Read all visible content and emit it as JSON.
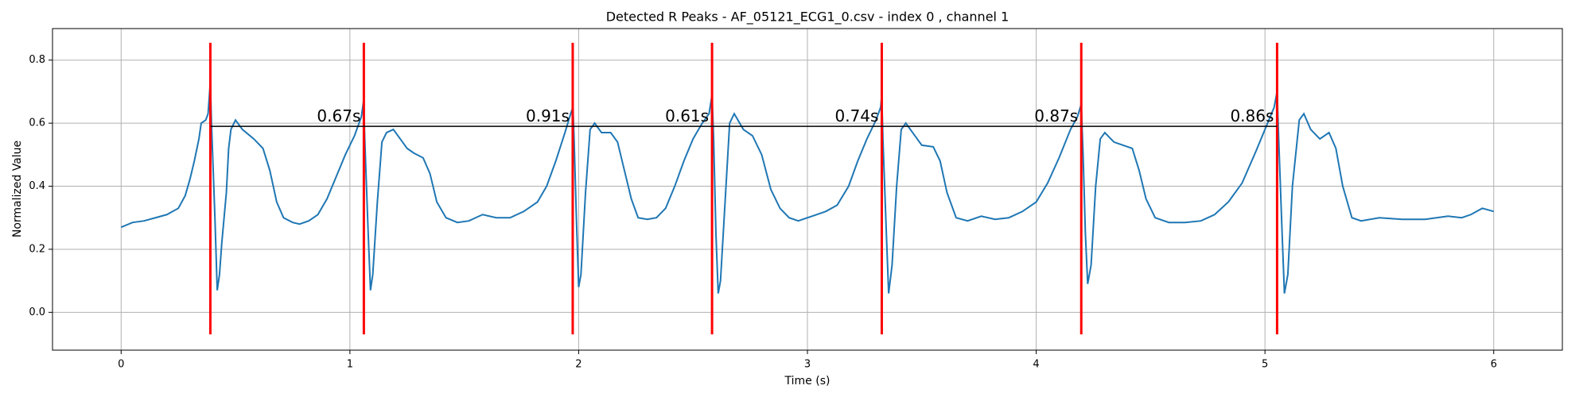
{
  "chart_data": {
    "type": "line",
    "title": "Detected R Peaks - AF_05121_ECG1_0.csv - index 0 , channel 1",
    "x_label": "Time (s)",
    "y_label": "Normalized Value",
    "xlim": [
      -0.3,
      6.3
    ],
    "ylim": [
      -0.12,
      0.9
    ],
    "xticks": [
      0,
      1,
      2,
      3,
      4,
      5,
      6
    ],
    "yticks": [
      {
        "value": 0,
        "label": "0.0"
      },
      0.2,
      0.4,
      0.6,
      0.8
    ],
    "grid": true,
    "x": [
      0,
      0.05,
      0.1,
      0.15,
      0.2,
      0.25,
      0.28,
      0.3,
      0.32,
      0.34,
      0.35,
      0.37,
      0.38,
      0.39,
      0.395,
      0.41,
      0.42,
      0.43,
      0.44,
      0.46,
      0.47,
      0.48,
      0.5,
      0.53,
      0.58,
      0.62,
      0.65,
      0.68,
      0.71,
      0.75,
      0.78,
      0.82,
      0.86,
      0.9,
      0.94,
      0.98,
      1.02,
      1.05,
      1.06,
      1.065,
      1.08,
      1.09,
      1.1,
      1.12,
      1.14,
      1.16,
      1.19,
      1.22,
      1.25,
      1.28,
      1.32,
      1.35,
      1.38,
      1.42,
      1.47,
      1.52,
      1.58,
      1.64,
      1.7,
      1.76,
      1.82,
      1.86,
      1.9,
      1.94,
      1.965,
      1.975,
      1.98,
      1.99,
      2,
      2.01,
      2.03,
      2.05,
      2.07,
      2.1,
      2.14,
      2.17,
      2.2,
      2.23,
      2.26,
      2.3,
      2.34,
      2.38,
      2.42,
      2.46,
      2.5,
      2.54,
      2.57,
      2.583,
      2.59,
      2.6,
      2.61,
      2.62,
      2.64,
      2.66,
      2.68,
      2.72,
      2.76,
      2.8,
      2.84,
      2.88,
      2.92,
      2.96,
      3,
      3.04,
      3.08,
      3.13,
      3.18,
      3.22,
      3.26,
      3.3,
      3.32,
      3.325,
      3.33,
      3.345,
      3.355,
      3.37,
      3.39,
      3.41,
      3.43,
      3.46,
      3.5,
      3.55,
      3.58,
      3.61,
      3.65,
      3.7,
      3.76,
      3.82,
      3.88,
      3.94,
      4,
      4.05,
      4.1,
      4.15,
      4.18,
      4.197,
      4.205,
      4.215,
      4.225,
      4.24,
      4.26,
      4.28,
      4.3,
      4.34,
      4.38,
      4.42,
      4.45,
      4.48,
      4.52,
      4.58,
      4.65,
      4.72,
      4.78,
      4.84,
      4.9,
      4.96,
      5,
      5.04,
      5.053,
      5.06,
      5.075,
      5.085,
      5.1,
      5.12,
      5.15,
      5.17,
      5.2,
      5.24,
      5.28,
      5.31,
      5.34,
      5.38,
      5.42,
      5.5,
      5.6,
      5.7,
      5.8,
      5.86,
      5.9,
      5.95,
      6
    ],
    "series": [
      {
        "color": "#1f77b4",
        "values": [
          0.27,
          0.285,
          0.29,
          0.3,
          0.31,
          0.33,
          0.37,
          0.42,
          0.48,
          0.55,
          0.6,
          0.61,
          0.63,
          0.73,
          0.6,
          0.3,
          0.07,
          0.12,
          0.22,
          0.38,
          0.52,
          0.58,
          0.61,
          0.58,
          0.55,
          0.52,
          0.45,
          0.35,
          0.3,
          0.285,
          0.28,
          0.29,
          0.31,
          0.36,
          0.43,
          0.5,
          0.56,
          0.62,
          0.67,
          0.55,
          0.25,
          0.07,
          0.12,
          0.35,
          0.54,
          0.57,
          0.58,
          0.55,
          0.52,
          0.505,
          0.49,
          0.44,
          0.35,
          0.3,
          0.285,
          0.29,
          0.31,
          0.3,
          0.3,
          0.32,
          0.35,
          0.4,
          0.48,
          0.57,
          0.63,
          0.65,
          0.55,
          0.3,
          0.08,
          0.12,
          0.38,
          0.58,
          0.6,
          0.57,
          0.57,
          0.54,
          0.45,
          0.36,
          0.3,
          0.295,
          0.3,
          0.33,
          0.4,
          0.48,
          0.55,
          0.6,
          0.63,
          0.69,
          0.55,
          0.25,
          0.06,
          0.1,
          0.35,
          0.6,
          0.63,
          0.58,
          0.56,
          0.5,
          0.39,
          0.33,
          0.3,
          0.29,
          0.3,
          0.31,
          0.32,
          0.34,
          0.4,
          0.48,
          0.55,
          0.61,
          0.65,
          0.69,
          0.55,
          0.25,
          0.06,
          0.15,
          0.4,
          0.58,
          0.6,
          0.57,
          0.53,
          0.525,
          0.48,
          0.38,
          0.3,
          0.29,
          0.305,
          0.295,
          0.3,
          0.32,
          0.35,
          0.41,
          0.49,
          0.58,
          0.62,
          0.66,
          0.5,
          0.25,
          0.09,
          0.15,
          0.4,
          0.55,
          0.57,
          0.54,
          0.53,
          0.52,
          0.45,
          0.36,
          0.3,
          0.285,
          0.285,
          0.29,
          0.31,
          0.35,
          0.41,
          0.51,
          0.58,
          0.65,
          0.7,
          0.55,
          0.25,
          0.06,
          0.12,
          0.4,
          0.61,
          0.63,
          0.58,
          0.55,
          0.57,
          0.52,
          0.4,
          0.3,
          0.29,
          0.3,
          0.295,
          0.295,
          0.305,
          0.3,
          0.31,
          0.33,
          0.32
        ]
      }
    ],
    "peaks": [
      0.39,
      1.061,
      1.974,
      2.583,
      3.325,
      4.197,
      5.053
    ],
    "peak_color": "#ff0000",
    "peak_line_ylim": [
      -0.07,
      0.855
    ],
    "interval_level": 0.59,
    "intervals": {
      "values": [
        0.67,
        0.91,
        0.61,
        0.74,
        0.87,
        0.86
      ],
      "value_labels": [
        "0.67s",
        "0.91s",
        "0.61s",
        "0.74s",
        "0.87s",
        "0.86s"
      ]
    }
  }
}
